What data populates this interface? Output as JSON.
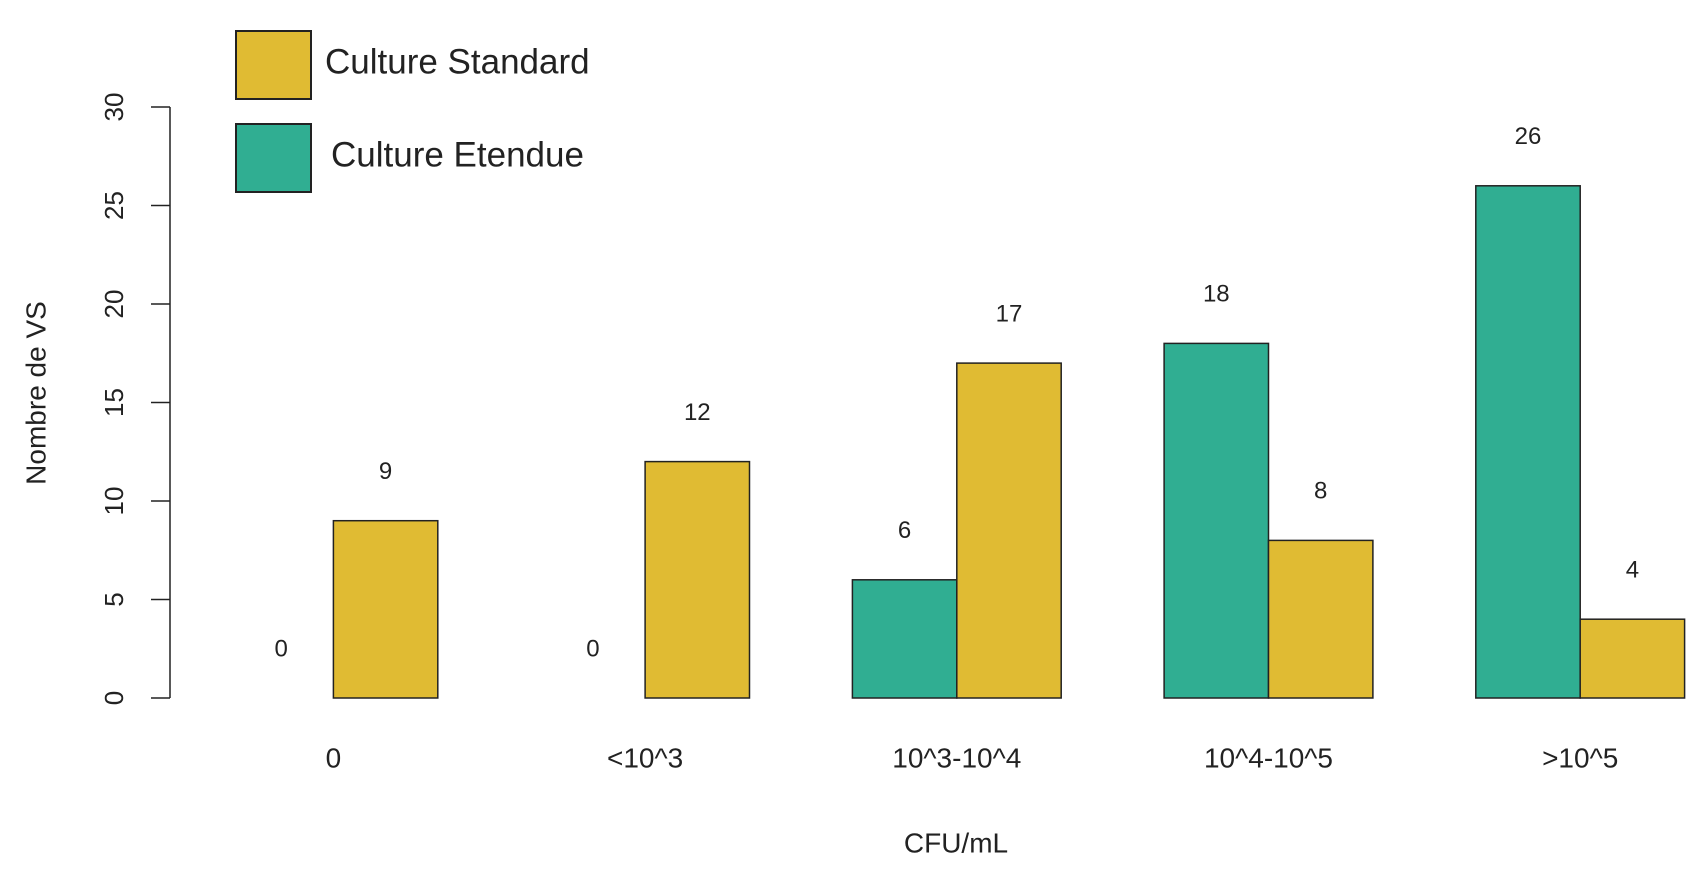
{
  "chart_data": {
    "type": "bar",
    "x_label": "CFU/mL",
    "y_label": "Nombre de VS",
    "categories": [
      "0",
      "<10^3",
      "10^3-10^4",
      "10^4-10^5",
      ">10^5"
    ],
    "series": [
      {
        "name": "Culture Standard",
        "color": "#e0bb33",
        "values": [
          9,
          12,
          17,
          8,
          4
        ]
      },
      {
        "name": "Culture Etendue",
        "color": "#30ae92",
        "values": [
          0,
          0,
          6,
          18,
          26
        ]
      }
    ],
    "ylim": [
      0,
      30
    ],
    "yticks": [
      0,
      5,
      10,
      15,
      20,
      25,
      30
    ]
  }
}
